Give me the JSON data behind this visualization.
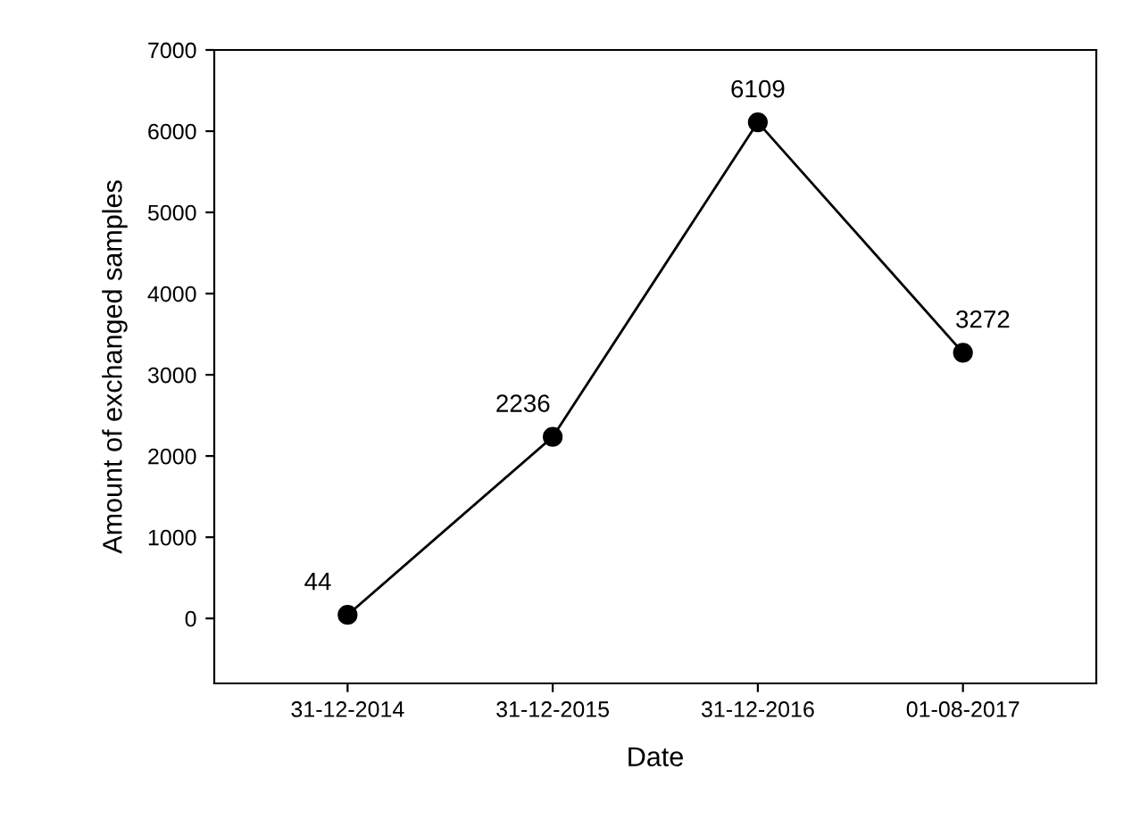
{
  "chart_data": {
    "type": "line",
    "xlabel": "Date",
    "ylabel": "Amount of exchanged samples",
    "categories": [
      "31-12-2014",
      "31-12-2015",
      "31-12-2016",
      "01-08-2017"
    ],
    "values": [
      44,
      2236,
      6109,
      3272
    ],
    "color": "#000000",
    "marker": "circle",
    "line_style": "solid",
    "data_labels": true,
    "ylim": [
      -800,
      7000
    ],
    "yticks": [
      0,
      1000,
      2000,
      3000,
      4000,
      5000,
      6000,
      7000
    ],
    "grid": false,
    "legend": false
  }
}
